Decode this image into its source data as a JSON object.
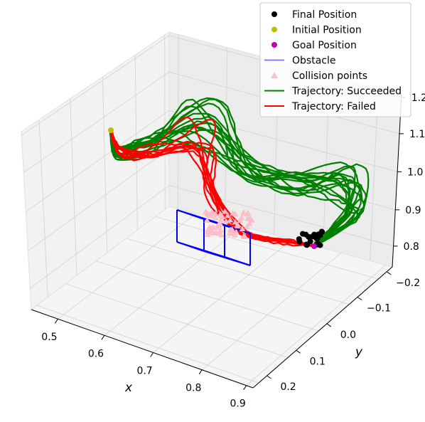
{
  "chart_data": {
    "type": "line",
    "projection": "3d",
    "axes": {
      "x": {
        "label": "x",
        "ticks": [
          "0.5",
          "0.6",
          "0.7",
          "0.8",
          "0.9"
        ],
        "range": [
          0.45,
          0.92
        ]
      },
      "y": {
        "label": "y",
        "ticks": [
          "−0.2",
          "−0.1",
          "0.0",
          "0.1",
          "0.2"
        ],
        "range": [
          -0.23,
          0.25
        ]
      },
      "z": {
        "label": "",
        "ticks": [
          "0.8",
          "0.9",
          "1.0",
          "1.1",
          "1.2"
        ],
        "range": [
          0.76,
          1.22
        ]
      }
    },
    "grid": true,
    "legend": {
      "placement": "top-right",
      "entries": [
        {
          "label": "Final Position",
          "marker": "circle",
          "color": "#000000"
        },
        {
          "label": "Initial Position",
          "marker": "circle",
          "color": "#bfbf00"
        },
        {
          "label": "Goal Position",
          "marker": "circle",
          "color": "#bf00bf"
        },
        {
          "label": "Obstacle",
          "marker": "line",
          "color": "#8080ff"
        },
        {
          "label": "Collision points",
          "marker": "triangle",
          "color": "#ffc0cb"
        },
        {
          "label": "Trajectory: Succeeded",
          "marker": "line",
          "color": "#008000"
        },
        {
          "label": "Trajectory: Failed",
          "marker": "line",
          "color": "#ff0000"
        }
      ]
    },
    "initial_position": {
      "x": 0.45,
      "y": 0.02,
      "z": 1.12
    },
    "goal_position": {
      "x": 0.88,
      "y": 0.0,
      "z": 0.78
    },
    "obstacle_box": {
      "x": [
        0.62,
        0.72
      ],
      "y": [
        -0.05,
        0.03
      ],
      "z": [
        0.78,
        0.88
      ]
    },
    "trajectories_succeeded": 16,
    "trajectories_failed": 10
  }
}
